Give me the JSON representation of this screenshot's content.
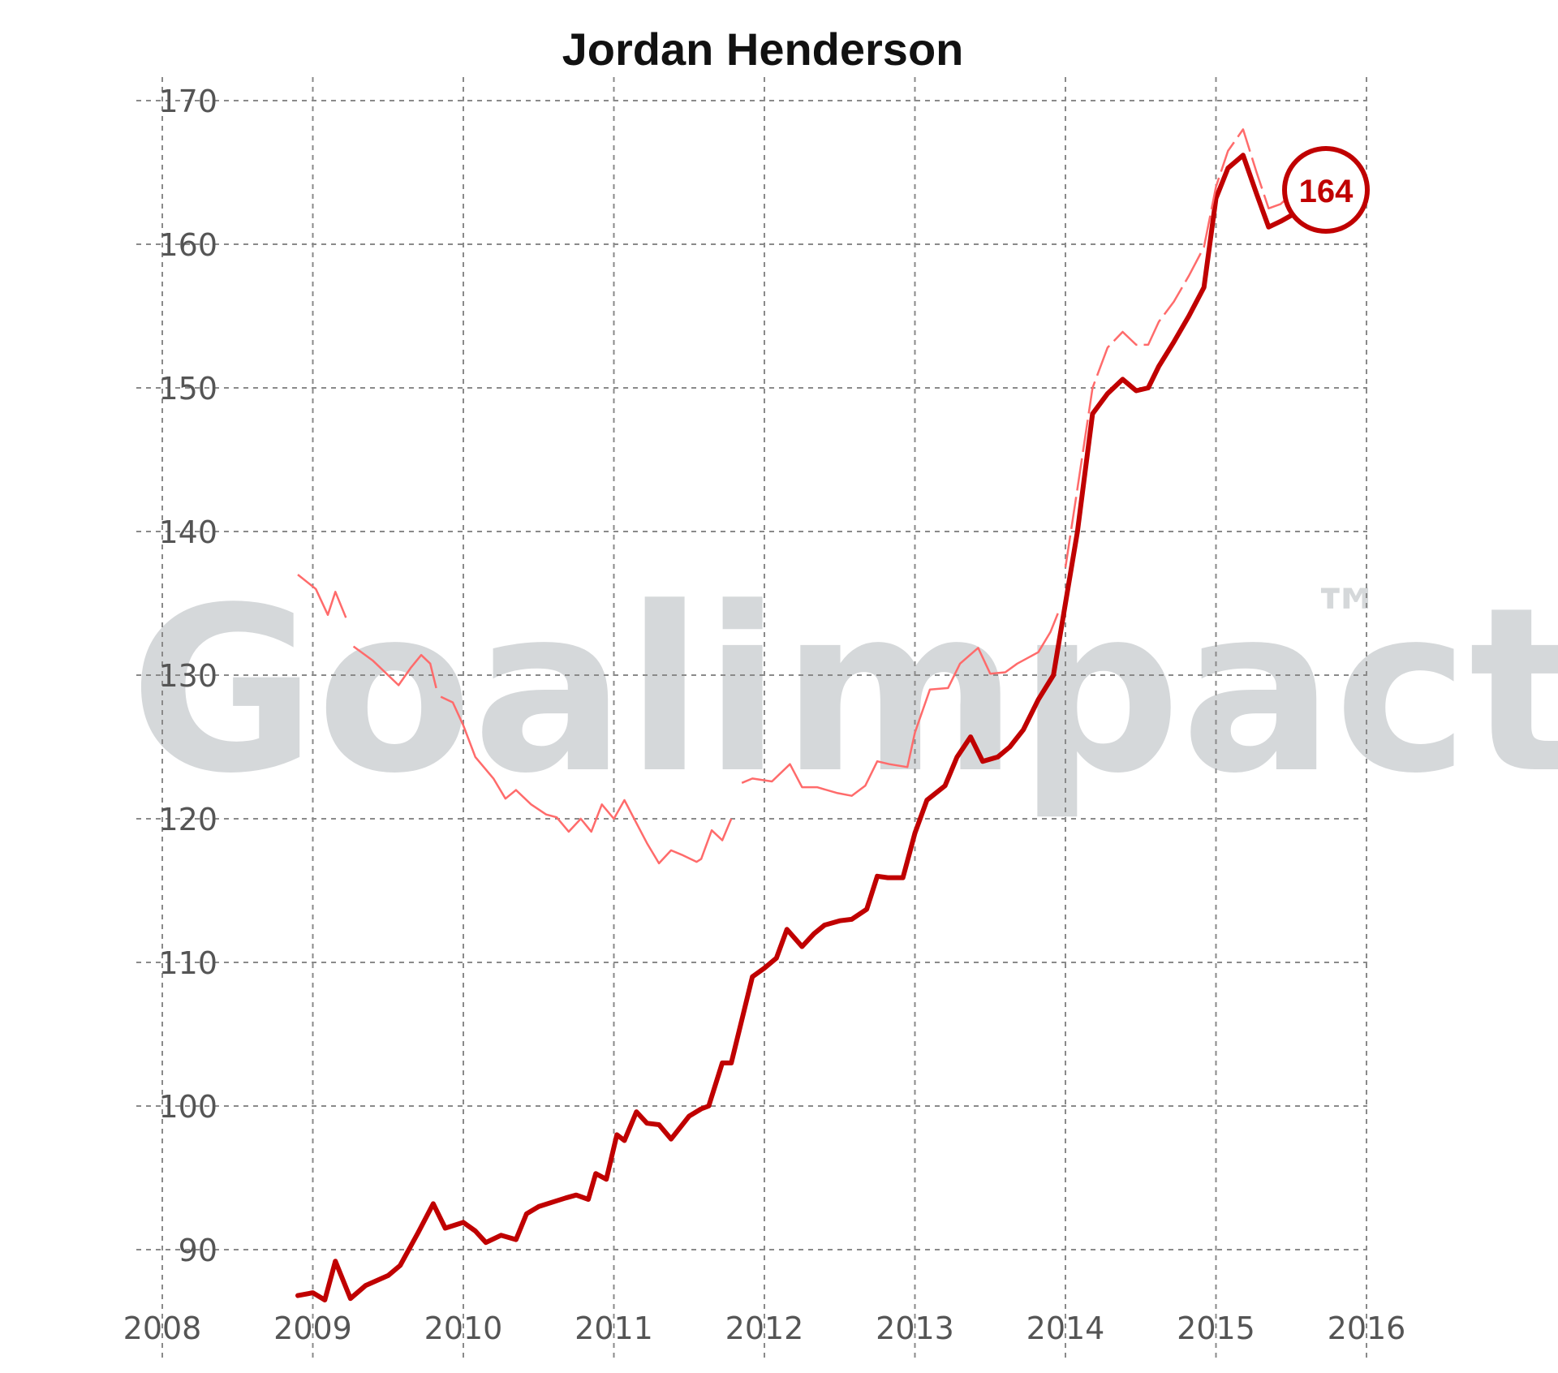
{
  "chart_data": {
    "type": "line",
    "title": "Jordan Henderson",
    "xlabel": "",
    "ylabel": "",
    "xlim": [
      2008,
      2016
    ],
    "ylim": [
      86,
      172
    ],
    "x_ticks": [
      2008,
      2009,
      2010,
      2011,
      2012,
      2013,
      2014,
      2015,
      2016
    ],
    "x_tick_labels": [
      "2008",
      "2009",
      "2010",
      "2011",
      "2012",
      "2013",
      "2014",
      "2015",
      "2016"
    ],
    "y_ticks": [
      90,
      100,
      110,
      120,
      130,
      140,
      150,
      160,
      170
    ],
    "y_tick_labels": [
      "90",
      "100",
      "110",
      "120",
      "130",
      "140",
      "150",
      "160",
      "170"
    ],
    "grid": true,
    "watermark": "Goalimpact™",
    "badge": {
      "value": "164"
    },
    "colors": {
      "main": "#c00000",
      "secondary": "#ff6b6b",
      "badge": "#c00000",
      "watermark": "#d5d8da"
    },
    "series": [
      {
        "style": "thick-solid",
        "x": [
          2008.9,
          2009.0,
          2009.08,
          2009.15,
          2009.25,
          2009.35,
          2009.5,
          2009.58,
          2009.7,
          2009.8,
          2009.88,
          2010.0,
          2010.08,
          2010.15,
          2010.25,
          2010.35,
          2010.42,
          2010.5,
          2010.62,
          2010.68,
          2010.75,
          2010.83,
          2010.88,
          2010.95,
          2011.02,
          2011.07,
          2011.15,
          2011.22,
          2011.3,
          2011.38,
          2011.5,
          2011.58,
          2011.63,
          2011.72,
          2011.78,
          2011.85,
          2011.92,
          2012.0,
          2012.08,
          2012.15,
          2012.25,
          2012.33,
          2012.4,
          2012.5,
          2012.58,
          2012.68,
          2012.75,
          2012.82,
          2012.92,
          2013.0,
          2013.08,
          2013.2,
          2013.28,
          2013.37,
          2013.45,
          2013.55,
          2013.63,
          2013.72,
          2013.82,
          2013.92,
          2014.0,
          2014.08,
          2014.18,
          2014.28,
          2014.38,
          2014.47,
          2014.55,
          2014.62,
          2014.72,
          2014.82,
          2014.92,
          2015.0,
          2015.08,
          2015.18,
          2015.27,
          2015.35,
          2015.43,
          2015.55
        ],
        "values": [
          86.8,
          87.0,
          86.5,
          89.2,
          86.6,
          87.5,
          88.2,
          88.9,
          91.2,
          93.2,
          91.5,
          91.9,
          91.3,
          90.5,
          91.0,
          90.7,
          92.5,
          93.0,
          93.4,
          93.6,
          93.8,
          93.5,
          95.3,
          94.9,
          98.0,
          97.6,
          99.6,
          98.8,
          98.7,
          97.7,
          99.3,
          99.8,
          100.0,
          103.0,
          103.0,
          106.0,
          109.0,
          109.6,
          110.3,
          112.3,
          111.1,
          112.0,
          112.6,
          112.9,
          113.0,
          113.7,
          116.0,
          115.9,
          115.9,
          119.0,
          121.3,
          122.3,
          124.3,
          125.7,
          124.0,
          124.3,
          125.0,
          126.2,
          128.3,
          130.0,
          135.0,
          140.0,
          148.2,
          149.6,
          150.6,
          149.8,
          150.0,
          151.5,
          153.2,
          155.0,
          157.0,
          163.2,
          165.3,
          166.2,
          163.5,
          161.2,
          161.6,
          162.3
        ]
      },
      {
        "style": "thin-solid",
        "segments": [
          {
            "x": [
              2008.9,
              2009.02,
              2009.1,
              2009.15,
              2009.22
            ],
            "values": [
              137.0,
              136.0,
              134.2,
              135.8,
              134.0
            ]
          },
          {
            "x": [
              2009.27,
              2009.4,
              2009.57,
              2009.65,
              2009.72,
              2009.78,
              2009.82
            ],
            "values": [
              132.0,
              131.0,
              129.3,
              130.5,
              131.4,
              130.8,
              129.1
            ]
          },
          {
            "x": [
              2009.85,
              2009.93,
              2010.0,
              2010.08,
              2010.2,
              2010.28,
              2010.35,
              2010.45,
              2010.55,
              2010.62,
              2010.7,
              2010.78,
              2010.85,
              2010.92,
              2011.0,
              2011.07,
              2011.15,
              2011.22,
              2011.3,
              2011.38,
              2011.45,
              2011.55,
              2011.58,
              2011.65,
              2011.72,
              2011.78
            ],
            "values": [
              128.5,
              128.1,
              126.5,
              124.3,
              122.8,
              121.4,
              122.0,
              121.0,
              120.3,
              120.1,
              119.1,
              120.0,
              119.1,
              121.0,
              120.0,
              121.3,
              119.7,
              118.3,
              116.9,
              117.8,
              117.5,
              117.0,
              117.2,
              119.2,
              118.5,
              120.0
            ]
          },
          {
            "x": [
              2011.85,
              2011.92,
              2012.05,
              2012.17,
              2012.25,
              2012.35,
              2012.48,
              2012.58,
              2012.67,
              2012.75,
              2012.83,
              2012.95,
              2013.0,
              2013.1,
              2013.22,
              2013.3,
              2013.42,
              2013.5,
              2013.6,
              2013.68,
              2013.82,
              2013.9,
              2013.95
            ],
            "values": [
              122.5,
              122.8,
              122.6,
              123.8,
              122.2,
              122.2,
              121.8,
              121.6,
              122.3,
              124.0,
              123.8,
              123.6,
              126.0,
              129.0,
              129.1,
              130.8,
              131.9,
              130.1,
              130.2,
              130.8,
              131.6,
              133.0,
              134.3
            ]
          }
        ]
      },
      {
        "style": "thin-dashed",
        "x": [
          2014.0,
          2014.08,
          2014.18,
          2014.28,
          2014.38,
          2014.47,
          2014.55,
          2014.62,
          2014.72,
          2014.82,
          2014.92,
          2015.0,
          2015.08,
          2015.18,
          2015.27,
          2015.35,
          2015.43,
          2015.48
        ],
        "values": [
          137.5,
          143.0,
          150.0,
          152.8,
          153.9,
          153.0,
          153.0,
          154.6,
          156.0,
          157.8,
          159.8,
          164.0,
          166.5,
          168.0,
          165.0,
          162.5,
          162.8,
          163.3
        ]
      }
    ]
  }
}
